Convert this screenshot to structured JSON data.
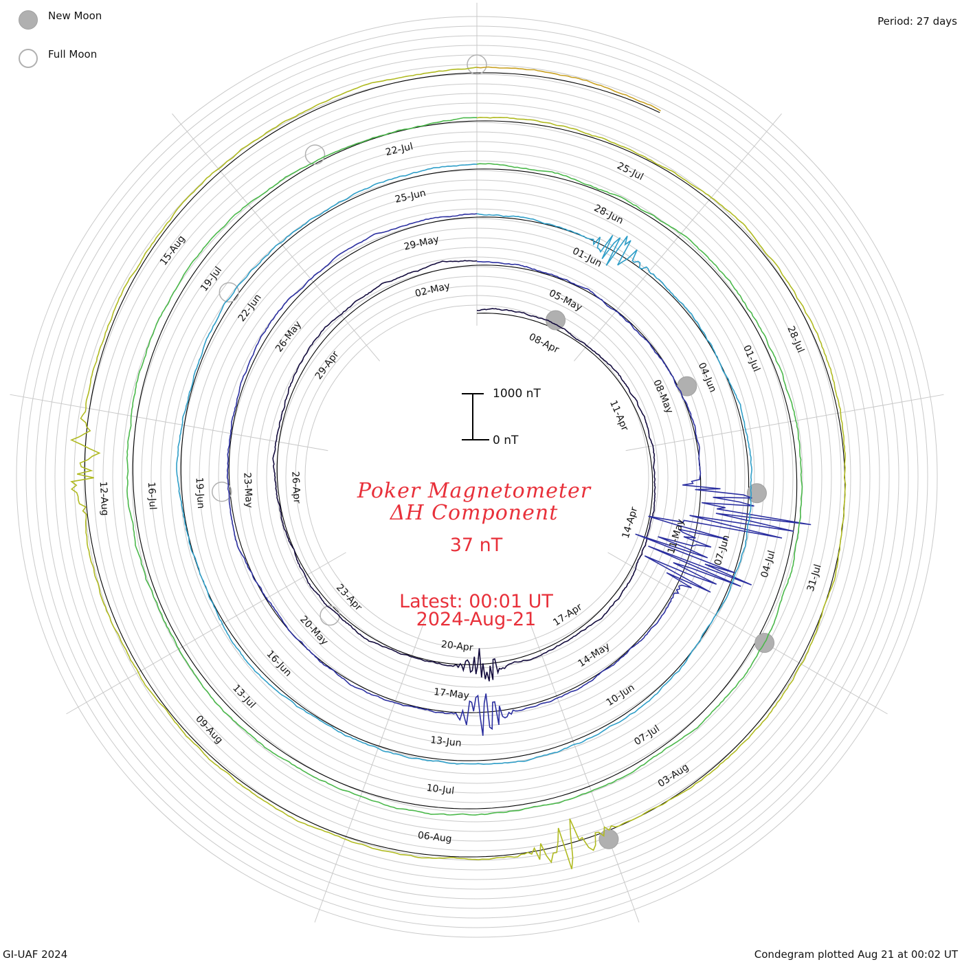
{
  "legend": {
    "new_moon_label": "New Moon",
    "full_moon_label": "Full Moon",
    "new_moon_color": "#b0b0b0"
  },
  "period_label": "Period: 27 days",
  "footer": {
    "left": "GI-UAF 2024",
    "right": "Condegram plotted Aug 21 at 00:02 UT"
  },
  "chart_data": {
    "type": "line",
    "title_line1": "Poker Magnetometer",
    "title_line2": "ΔH Component",
    "current_value": "37 nT",
    "latest_line1": "Latest: 00:01 UT",
    "latest_line2": "2024-Aug-21",
    "scale_bar": {
      "top_label": "1000 nT",
      "bottom_label": "0 nT",
      "value_nT": 1000
    },
    "period_days": 27,
    "start_date": "2024-04-06",
    "end_date": "2024-08-21",
    "series_colors": [
      "#120a3c",
      "#2b2fa0",
      "#2e9ec8",
      "#4ab84a",
      "#b0ba20",
      "#c8a020",
      "#c06010",
      "#c01810"
    ],
    "date_labels": [
      "08-Apr",
      "11-Apr",
      "14-Apr",
      "17-Apr",
      "20-Apr",
      "23-Apr",
      "26-Apr",
      "29-Apr",
      "02-May",
      "05-May",
      "08-May",
      "11-May",
      "14-May",
      "17-May",
      "20-May",
      "23-May",
      "26-May",
      "29-May",
      "01-Jun",
      "04-Jun",
      "07-Jun",
      "10-Jun",
      "13-Jun",
      "16-Jun",
      "19-Jun",
      "22-Jun",
      "25-Jun",
      "28-Jun",
      "01-Jul",
      "04-Jul",
      "07-Jul",
      "10-Jul",
      "13-Jul",
      "16-Jul",
      "19-Jul",
      "22-Jul",
      "25-Jul",
      "28-Jul",
      "31-Jul",
      "03-Aug",
      "06-Aug",
      "09-Aug",
      "12-Aug",
      "15-Aug"
    ],
    "disturbances": [
      {
        "date": "2024-05-10",
        "peak_nT": 2800
      },
      {
        "date": "2024-05-11",
        "peak_nT": 1800
      },
      {
        "date": "2024-08-04",
        "peak_nT": 600
      },
      {
        "date": "2024-08-12",
        "peak_nT": 500
      },
      {
        "date": "2024-06-01",
        "peak_nT": 400
      },
      {
        "date": "2024-04-19",
        "peak_nT": 450
      },
      {
        "date": "2024-05-16",
        "peak_nT": 500
      }
    ],
    "new_moons": [
      "2024-04-08",
      "2024-05-08",
      "2024-06-06",
      "2024-07-05",
      "2024-08-04"
    ],
    "full_moons": [
      "2024-04-23",
      "2024-05-23",
      "2024-06-22",
      "2024-07-21",
      "2024-08-19"
    ],
    "grid": true,
    "legend_position": "top-left"
  }
}
